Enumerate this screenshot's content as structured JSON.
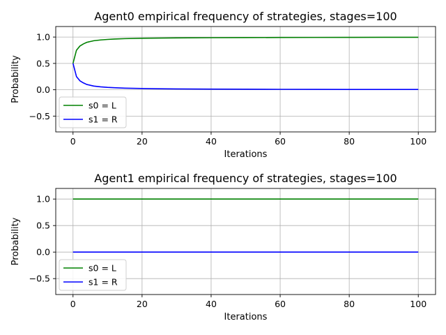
{
  "chart_data": [
    {
      "type": "line",
      "title": "Agent0 empirical frequency of strategies, stages=100",
      "xlabel": "Iterations",
      "ylabel": "Probability",
      "xlim": [
        -5,
        105
      ],
      "ylim": [
        -0.8,
        1.2
      ],
      "xticks": [
        0,
        20,
        40,
        60,
        80,
        100
      ],
      "yticks": [
        -0.5,
        0.0,
        0.5,
        1.0
      ],
      "ytick_labels": [
        "−0.5",
        "0.0",
        "0.5",
        "1.0"
      ],
      "grid": true,
      "legend": "lower-left",
      "series": [
        {
          "name": "s0 = L",
          "color": "#008000",
          "x": [
            0,
            1,
            2,
            3,
            4,
            5,
            6,
            8,
            10,
            12,
            15,
            20,
            25,
            30,
            40,
            50,
            60,
            70,
            80,
            90,
            100
          ],
          "y": [
            0.5,
            0.75,
            0.83,
            0.87,
            0.9,
            0.915,
            0.93,
            0.945,
            0.955,
            0.962,
            0.97,
            0.977,
            0.981,
            0.984,
            0.988,
            0.99,
            0.992,
            0.993,
            0.994,
            0.995,
            0.995
          ]
        },
        {
          "name": "s1 = R",
          "color": "#0000ff",
          "x": [
            0,
            1,
            2,
            3,
            4,
            5,
            6,
            8,
            10,
            12,
            15,
            20,
            25,
            30,
            40,
            50,
            60,
            70,
            80,
            90,
            100
          ],
          "y": [
            0.5,
            0.25,
            0.17,
            0.13,
            0.1,
            0.085,
            0.07,
            0.055,
            0.045,
            0.038,
            0.03,
            0.023,
            0.019,
            0.016,
            0.012,
            0.01,
            0.008,
            0.007,
            0.006,
            0.005,
            0.005
          ]
        }
      ]
    },
    {
      "type": "line",
      "title": "Agent1 empirical frequency of strategies, stages=100",
      "xlabel": "Iterations",
      "ylabel": "Probability",
      "xlim": [
        -5,
        105
      ],
      "ylim": [
        -0.8,
        1.2
      ],
      "xticks": [
        0,
        20,
        40,
        60,
        80,
        100
      ],
      "yticks": [
        -0.5,
        0.0,
        0.5,
        1.0
      ],
      "ytick_labels": [
        "−0.5",
        "0.0",
        "0.5",
        "1.0"
      ],
      "grid": true,
      "legend": "lower-left",
      "series": [
        {
          "name": "s0 = L",
          "color": "#008000",
          "x": [
            0,
            100
          ],
          "y": [
            1.0,
            1.0
          ]
        },
        {
          "name": "s1 = R",
          "color": "#0000ff",
          "x": [
            0,
            100
          ],
          "y": [
            0.0,
            0.0
          ]
        }
      ]
    }
  ]
}
